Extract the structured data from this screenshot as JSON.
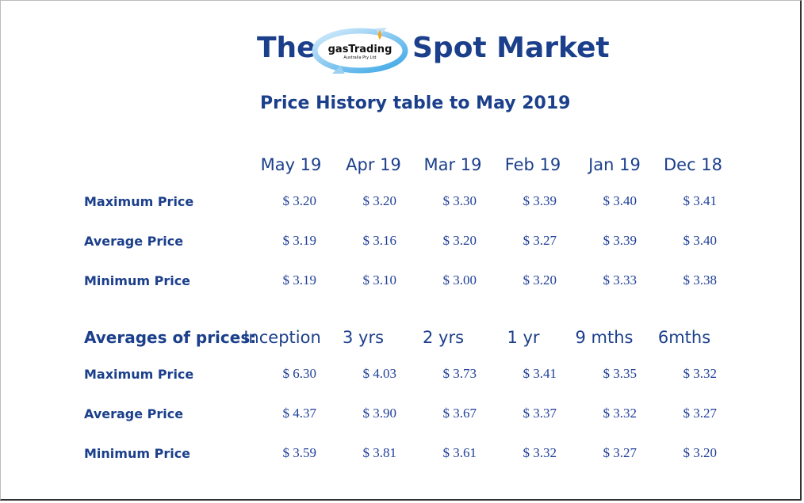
{
  "header": {
    "title_left": "The",
    "title_right": "Spot Market",
    "logo_text": "gasTrading",
    "logo_subtext": "Australia Pty Ltd",
    "subtitle": "Price History table to May  2019"
  },
  "monthly": {
    "columns": [
      "May 19",
      "Apr 19",
      "Mar 19",
      "Feb 19",
      "Jan 19",
      "Dec 18"
    ],
    "rows": [
      {
        "label": "Maximum Price",
        "values": [
          "$ 3.20",
          "$ 3.20",
          "$ 3.30",
          "$ 3.39",
          "$ 3.40",
          "$ 3.41"
        ]
      },
      {
        "label": "Average Price",
        "values": [
          "$ 3.19",
          "$ 3.16",
          "$ 3.20",
          "$ 3.27",
          "$ 3.39",
          "$ 3.40"
        ]
      },
      {
        "label": "Minimum Price",
        "values": [
          "$ 3.19",
          "$ 3.10",
          "$ 3.00",
          "$ 3.20",
          "$ 3.33",
          "$ 3.38"
        ]
      }
    ]
  },
  "averages": {
    "title": "Averages of prices:",
    "columns": [
      "Inception",
      "3 yrs",
      "2 yrs",
      "1 yr",
      "9 mths",
      "6mths"
    ],
    "rows": [
      {
        "label": "Maximum Price",
        "values": [
          "$ 6.30",
          "$ 4.03",
          "$ 3.73",
          "$ 3.41",
          "$ 3.35",
          "$ 3.32"
        ]
      },
      {
        "label": "Average Price",
        "values": [
          "$ 4.37",
          "$ 3.90",
          "$ 3.67",
          "$ 3.37",
          "$ 3.32",
          "$ 3.27"
        ]
      },
      {
        "label": "Minimum Price",
        "values": [
          "$ 3.59",
          "$ 3.81",
          "$ 3.61",
          "$ 3.32",
          "$ 3.27",
          "$ 3.20"
        ]
      }
    ]
  },
  "colors": {
    "text": "#1b3f8b",
    "logo_ring": "#5ab4ea"
  }
}
